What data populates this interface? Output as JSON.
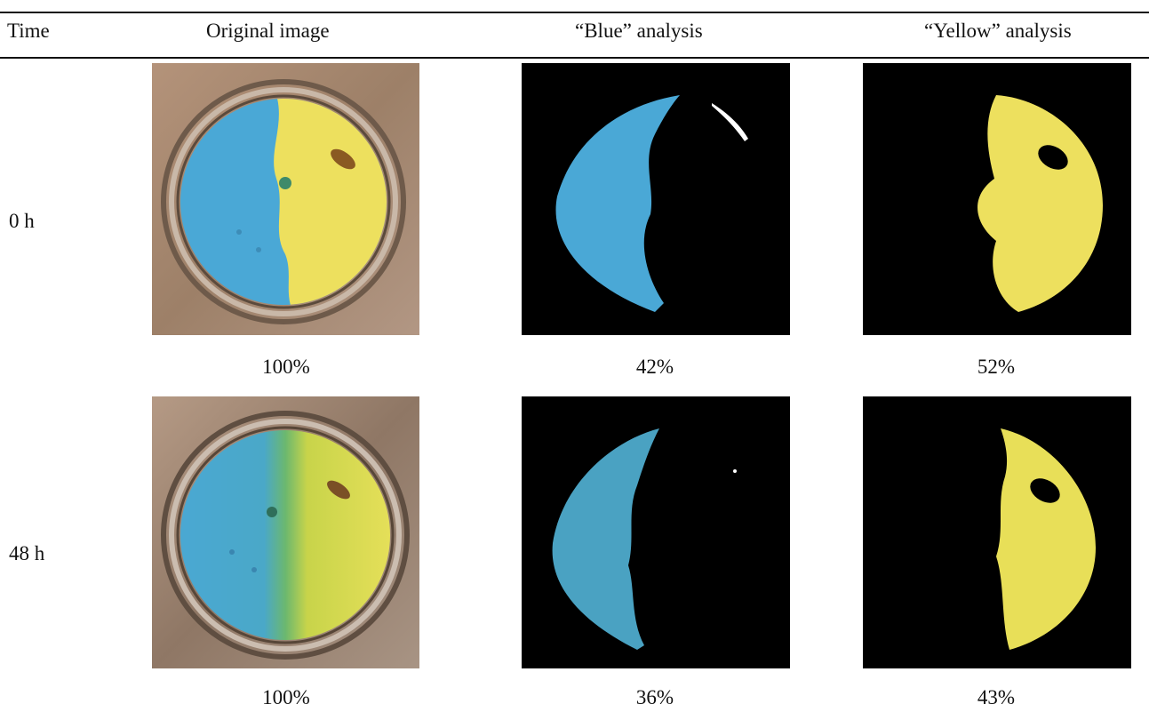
{
  "table": {
    "headers": {
      "time": "Time",
      "original": "Original image",
      "blue": "“Blue” analysis",
      "yellow": "“Yellow” analysis"
    },
    "rows": [
      {
        "time": "0 h",
        "original_pct": "100%",
        "blue_pct": "42%",
        "yellow_pct": "52%"
      },
      {
        "time": "48 h",
        "original_pct": "100%",
        "blue_pct": "36%",
        "yellow_pct": "43%"
      }
    ]
  },
  "colors": {
    "blue_sample": "#4aa8d6",
    "yellow_sample": "#eee360",
    "mask_background": "#000000",
    "dish_background": "#a98a6f"
  }
}
